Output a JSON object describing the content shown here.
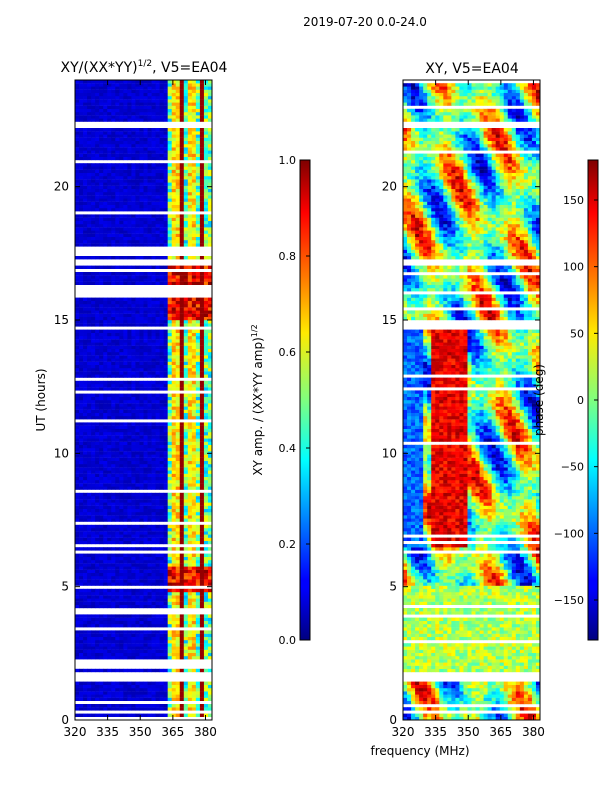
{
  "figure": {
    "suptitle": "2019-07-20 0.0-24.0",
    "xlabel_shared": "frequency (MHz)"
  },
  "chart_data": [
    {
      "type": "heatmap",
      "title_base": "XY/(XX*YY)",
      "title_exponent": "1/2",
      "title_suffix": ", V5=EA04",
      "xlabel": "",
      "ylabel": "UT (hours)",
      "xlim": [
        320,
        383
      ],
      "ylim": [
        0,
        24
      ],
      "x_ticks": [
        320,
        335,
        350,
        365,
        380
      ],
      "y_ticks": [
        0,
        5,
        10,
        15,
        20
      ],
      "colormap": "jet",
      "colorbar": {
        "label_base": "XY amp. / (XX*YY amp)",
        "label_exponent": "1/2",
        "range": [
          0,
          1
        ],
        "ticks": [
          "0.0",
          "0.2",
          "0.4",
          "0.6",
          "0.8",
          "1.0"
        ]
      },
      "values_description": "normalized amplitude; near 0 for 320-362 MHz, 0.3-1.0 for 362-382 MHz"
    },
    {
      "type": "heatmap",
      "title": "XY, V5=EA04",
      "xlabel": "",
      "ylabel": "",
      "xlim": [
        320,
        383
      ],
      "ylim": [
        0,
        24
      ],
      "x_ticks": [
        320,
        335,
        350,
        365,
        380
      ],
      "y_ticks": [
        0,
        5,
        10,
        15,
        20
      ],
      "colormap": "jet",
      "colorbar": {
        "label": "phase (deg)",
        "range": [
          -180,
          180
        ],
        "ticks": [
          "−150",
          "−100",
          "−50",
          "0",
          "50",
          "100",
          "150"
        ]
      },
      "values_description": "XY phase in degrees, full range -180 to 180"
    }
  ]
}
